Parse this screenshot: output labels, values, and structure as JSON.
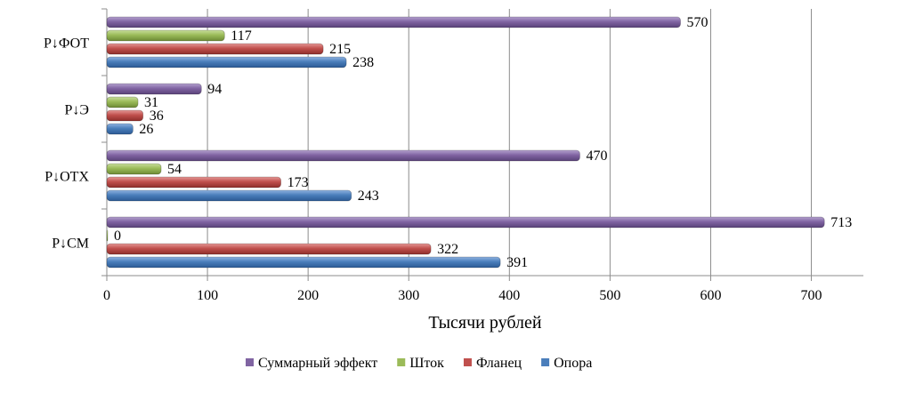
{
  "chart_data": {
    "type": "bar",
    "orientation": "horizontal",
    "categories": [
      "P↓СМ",
      "P↓ОТХ",
      "P↓Э",
      "P↓ФОТ"
    ],
    "series": [
      {
        "name": "Опора",
        "values": [
          391,
          243,
          26,
          238
        ],
        "color": "#4a7ebb"
      },
      {
        "name": "Фланец",
        "values": [
          322,
          173,
          36,
          215
        ],
        "color": "#c0504d"
      },
      {
        "name": "Шток",
        "values": [
          0,
          54,
          31,
          117
        ],
        "color": "#9bbb59"
      },
      {
        "name": "Суммарный эффект",
        "values": [
          713,
          470,
          94,
          570
        ],
        "color": "#8064a2"
      }
    ],
    "xlabel": "Тысячи рублей",
    "xlim": [
      0,
      750
    ],
    "xticks": [
      0,
      100,
      200,
      300,
      400,
      500,
      600,
      700
    ],
    "grid": "vertical",
    "legend": "bottom",
    "legend_order": [
      "Суммарный эффект",
      "Шток",
      "Фланец",
      "Опора"
    ]
  }
}
